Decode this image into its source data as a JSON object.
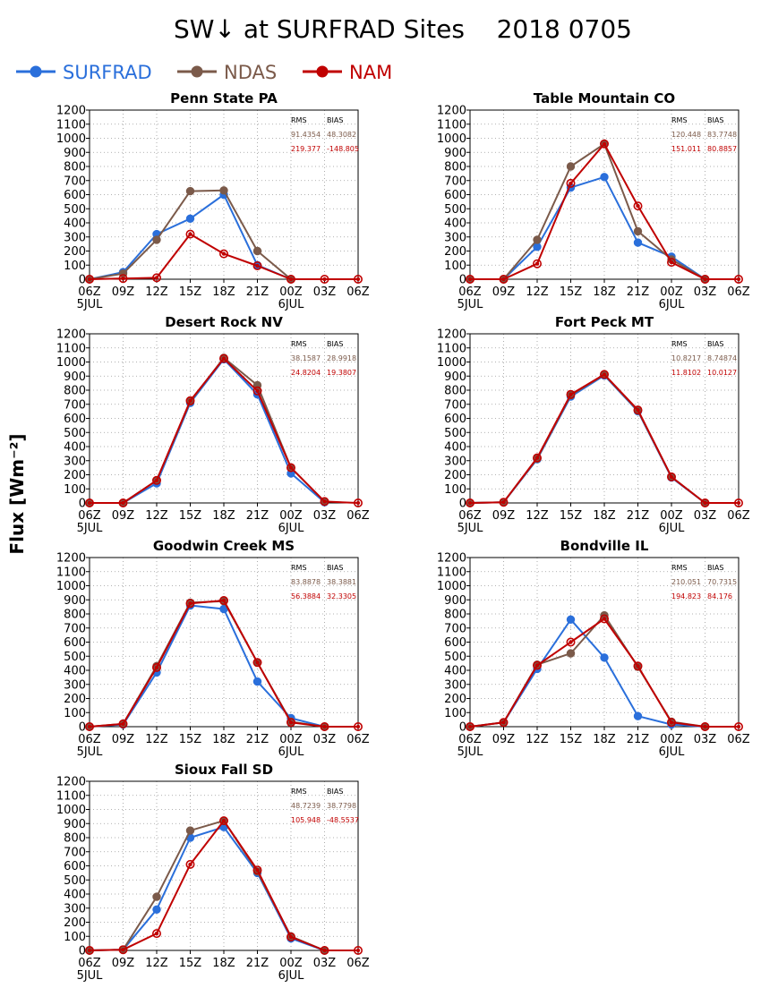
{
  "title": "SW↓ at SURFRAD Sites    2018 0705",
  "ylabel": "Flux [Wm⁻²]",
  "legend": [
    {
      "name": "SURFRAD",
      "color": "#2a6fdb"
    },
    {
      "name": "NDAS",
      "color": "#7b5a4a"
    },
    {
      "name": "NAM",
      "color": "#c00000"
    }
  ],
  "stats_headers": {
    "rms": "RMS",
    "bias": "BIAS"
  },
  "chart_data": [
    {
      "type": "line",
      "title": "Penn State PA",
      "x": [
        "06Z",
        "09Z",
        "12Z",
        "15Z",
        "18Z",
        "21Z",
        "00Z",
        "03Z",
        "06Z"
      ],
      "date_labels": {
        "0": "5JUL",
        "6": "6JUL"
      },
      "ylim": [
        0,
        1200
      ],
      "yticks": [
        0,
        100,
        200,
        300,
        400,
        500,
        600,
        700,
        800,
        900,
        1000,
        1100,
        1200
      ],
      "series": [
        {
          "name": "SURFRAD",
          "values": [
            0,
            50,
            320,
            430,
            600,
            100,
            0,
            null,
            null
          ]
        },
        {
          "name": "NDAS",
          "values": [
            0,
            40,
            280,
            625,
            630,
            200,
            0,
            null,
            null
          ]
        },
        {
          "name": "NAM",
          "values": [
            0,
            5,
            10,
            320,
            180,
            95,
            0,
            0,
            0
          ]
        }
      ],
      "stats": {
        "NDAS": {
          "rms": "91.4354",
          "bias": "48.3082"
        },
        "NAM": {
          "rms": "219.377",
          "bias": "-148.805"
        }
      }
    },
    {
      "type": "line",
      "title": "Table Mountain CO",
      "x": [
        "06Z",
        "09Z",
        "12Z",
        "15Z",
        "18Z",
        "21Z",
        "00Z",
        "03Z",
        "06Z"
      ],
      "date_labels": {
        "0": "5JUL",
        "6": "6JUL"
      },
      "ylim": [
        0,
        1200
      ],
      "yticks": [
        0,
        100,
        200,
        300,
        400,
        500,
        600,
        700,
        800,
        900,
        1000,
        1100,
        1200
      ],
      "series": [
        {
          "name": "SURFRAD",
          "values": [
            0,
            0,
            230,
            650,
            725,
            260,
            160,
            0,
            null
          ]
        },
        {
          "name": "NDAS",
          "values": [
            0,
            0,
            280,
            800,
            960,
            340,
            140,
            0,
            null
          ]
        },
        {
          "name": "NAM",
          "values": [
            0,
            0,
            110,
            680,
            960,
            520,
            120,
            0,
            0
          ]
        }
      ],
      "stats": {
        "NDAS": {
          "rms": "120.448",
          "bias": "83.7748"
        },
        "NAM": {
          "rms": "151.011",
          "bias": "80.8857"
        }
      }
    },
    {
      "type": "line",
      "title": "Desert Rock NV",
      "x": [
        "06Z",
        "09Z",
        "12Z",
        "15Z",
        "18Z",
        "21Z",
        "00Z",
        "03Z",
        "06Z"
      ],
      "date_labels": {
        "0": "5JUL",
        "6": "6JUL"
      },
      "ylim": [
        0,
        1200
      ],
      "yticks": [
        0,
        100,
        200,
        300,
        400,
        500,
        600,
        700,
        800,
        900,
        1000,
        1100,
        1200
      ],
      "series": [
        {
          "name": "SURFRAD",
          "values": [
            0,
            0,
            140,
            710,
            1020,
            770,
            210,
            5,
            null
          ]
        },
        {
          "name": "NDAS",
          "values": [
            0,
            0,
            160,
            720,
            1030,
            835,
            250,
            10,
            null
          ]
        },
        {
          "name": "NAM",
          "values": [
            0,
            0,
            160,
            725,
            1025,
            795,
            250,
            10,
            0
          ]
        }
      ],
      "stats": {
        "NDAS": {
          "rms": "38.1587",
          "bias": "28.9918"
        },
        "NAM": {
          "rms": "24.8204",
          "bias": "19.3807"
        }
      }
    },
    {
      "type": "line",
      "title": "Fort Peck MT",
      "x": [
        "06Z",
        "09Z",
        "12Z",
        "15Z",
        "18Z",
        "21Z",
        "00Z",
        "03Z",
        "06Z"
      ],
      "date_labels": {
        "0": "5JUL",
        "6": "6JUL"
      },
      "ylim": [
        0,
        1200
      ],
      "yticks": [
        0,
        100,
        200,
        300,
        400,
        500,
        600,
        700,
        800,
        900,
        1000,
        1100,
        1200
      ],
      "series": [
        {
          "name": "SURFRAD",
          "values": [
            0,
            5,
            310,
            755,
            905,
            650,
            180,
            0,
            null
          ]
        },
        {
          "name": "NDAS",
          "values": [
            0,
            5,
            315,
            765,
            910,
            655,
            185,
            0,
            null
          ]
        },
        {
          "name": "NAM",
          "values": [
            0,
            5,
            320,
            770,
            912,
            660,
            185,
            0,
            0
          ]
        }
      ],
      "stats": {
        "NDAS": {
          "rms": "10.8217",
          "bias": "8.74874"
        },
        "NAM": {
          "rms": "11.8102",
          "bias": "10.0127"
        }
      }
    },
    {
      "type": "line",
      "title": "Goodwin Creek MS",
      "x": [
        "06Z",
        "09Z",
        "12Z",
        "15Z",
        "18Z",
        "21Z",
        "00Z",
        "03Z",
        "06Z"
      ],
      "date_labels": {
        "0": "5JUL",
        "6": "6JUL"
      },
      "ylim": [
        0,
        1200
      ],
      "yticks": [
        0,
        100,
        200,
        300,
        400,
        500,
        600,
        700,
        800,
        900,
        1000,
        1100,
        1200
      ],
      "series": [
        {
          "name": "SURFRAD",
          "values": [
            0,
            15,
            385,
            860,
            835,
            320,
            60,
            0,
            null
          ]
        },
        {
          "name": "NDAS",
          "values": [
            0,
            20,
            430,
            880,
            890,
            455,
            35,
            0,
            null
          ]
        },
        {
          "name": "NAM",
          "values": [
            0,
            20,
            420,
            875,
            895,
            455,
            30,
            0,
            0
          ]
        }
      ],
      "stats": {
        "NDAS": {
          "rms": "83.8878",
          "bias": "38.3881"
        },
        "NAM": {
          "rms": "56.3884",
          "bias": "32.3305"
        }
      }
    },
    {
      "type": "line",
      "title": "Bondville IL",
      "x": [
        "06Z",
        "09Z",
        "12Z",
        "15Z",
        "18Z",
        "21Z",
        "00Z",
        "03Z",
        "06Z"
      ],
      "date_labels": {
        "0": "5JUL",
        "6": "6JUL"
      },
      "ylim": [
        0,
        1200
      ],
      "yticks": [
        0,
        100,
        200,
        300,
        400,
        500,
        600,
        700,
        800,
        900,
        1000,
        1100,
        1200
      ],
      "series": [
        {
          "name": "SURFRAD",
          "values": [
            0,
            30,
            410,
            760,
            490,
            75,
            15,
            0,
            null
          ]
        },
        {
          "name": "NDAS",
          "values": [
            0,
            30,
            440,
            520,
            790,
            425,
            35,
            0,
            null
          ]
        },
        {
          "name": "NAM",
          "values": [
            0,
            30,
            435,
            600,
            765,
            430,
            30,
            0,
            0
          ]
        }
      ],
      "stats": {
        "NDAS": {
          "rms": "210.051",
          "bias": "70.7315"
        },
        "NAM": {
          "rms": "194.823",
          "bias": "84.176"
        }
      }
    },
    {
      "type": "line",
      "title": "Sioux Fall SD",
      "x": [
        "06Z",
        "09Z",
        "12Z",
        "15Z",
        "18Z",
        "21Z",
        "00Z",
        "03Z",
        "06Z"
      ],
      "date_labels": {
        "0": "5JUL",
        "6": "6JUL"
      },
      "ylim": [
        0,
        1200
      ],
      "yticks": [
        0,
        100,
        200,
        300,
        400,
        500,
        600,
        700,
        800,
        900,
        1000,
        1100,
        1200
      ],
      "series": [
        {
          "name": "SURFRAD",
          "values": [
            0,
            5,
            290,
            800,
            875,
            550,
            85,
            0,
            null
          ]
        },
        {
          "name": "NDAS",
          "values": [
            0,
            5,
            380,
            850,
            920,
            560,
            100,
            0,
            null
          ]
        },
        {
          "name": "NAM",
          "values": [
            0,
            5,
            120,
            610,
            920,
            570,
            95,
            0,
            0
          ]
        }
      ],
      "stats": {
        "NDAS": {
          "rms": "48.7239",
          "bias": "38.7798"
        },
        "NAM": {
          "rms": "105.948",
          "bias": "-48.5537"
        }
      }
    }
  ]
}
